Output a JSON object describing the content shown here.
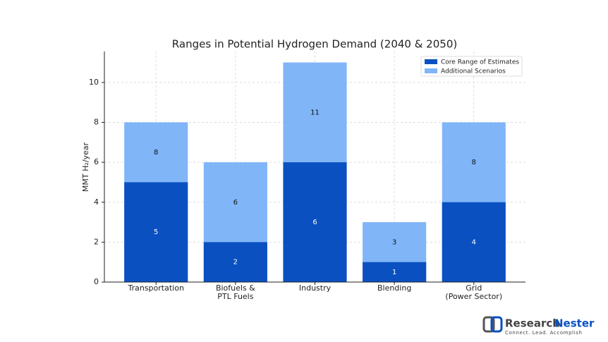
{
  "chart_data": {
    "type": "bar",
    "title": "Ranges in Potential Hydrogen Demand (2040 & 2050)",
    "y_label": "MMT H₂/year",
    "categories": [
      "Transportation",
      "Biofuels &\nPTL Fuels",
      "Industry",
      "Blending",
      "Grid\n(Power Sector)"
    ],
    "series": [
      {
        "name": "Core Range of Estimates",
        "color": "#0a50c0",
        "values": [
          5,
          2,
          6,
          1,
          4
        ]
      },
      {
        "name": "Additional Scenarios",
        "color": "#80b5f8",
        "values": [
          8,
          6,
          11,
          3,
          8
        ]
      }
    ],
    "ylim": [
      0,
      11.55
    ],
    "yticks": [
      0,
      2,
      4,
      6,
      8,
      10
    ],
    "grid": true,
    "legend": "upper right",
    "logo": {
      "brand1": "Research",
      "brand2": "Nester",
      "tagline": "Connect. Lead. Accomplish"
    }
  }
}
